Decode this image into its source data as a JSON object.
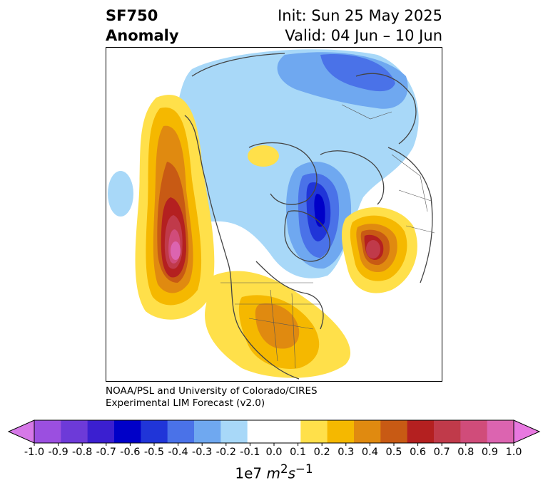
{
  "title": {
    "variable": "SF750",
    "subtitle": "Anomaly",
    "init": "Init: Sun 25 May 2025",
    "valid": "Valid: 04 Jun – 10 Jun"
  },
  "credit": {
    "line1": "NOAA/PSL and University of Colorado/CIRES",
    "line2": "Experimental LIM Forecast (v2.0)"
  },
  "colorbar": {
    "ticks": [
      "-1.0",
      "-0.9",
      "-0.8",
      "-0.7",
      "-0.6",
      "-0.5",
      "-0.4",
      "-0.3",
      "-0.2",
      "-0.1",
      "0.0",
      "0.1",
      "0.2",
      "0.3",
      "0.4",
      "0.5",
      "0.6",
      "0.7",
      "0.8",
      "0.9",
      "1.0"
    ],
    "colors": [
      "#9b4fe0",
      "#6d3ad8",
      "#3b1fd0",
      "#0000c8",
      "#2035d8",
      "#4a72e8",
      "#6fa8f0",
      "#a8d8f8",
      "#ffffff",
      "#ffffff",
      "#ffe04a",
      "#f5b800",
      "#e08a10",
      "#c85a14",
      "#b42020",
      "#c03a4a",
      "#d04c7a",
      "#dc64b0"
    ],
    "under_color": "#d678e8",
    "over_color": "#e878e0",
    "unit_prefix": "1e7 ",
    "unit_main": "m",
    "unit_sup1": "2",
    "unit_mid": "s",
    "unit_sup2": "−1"
  }
}
